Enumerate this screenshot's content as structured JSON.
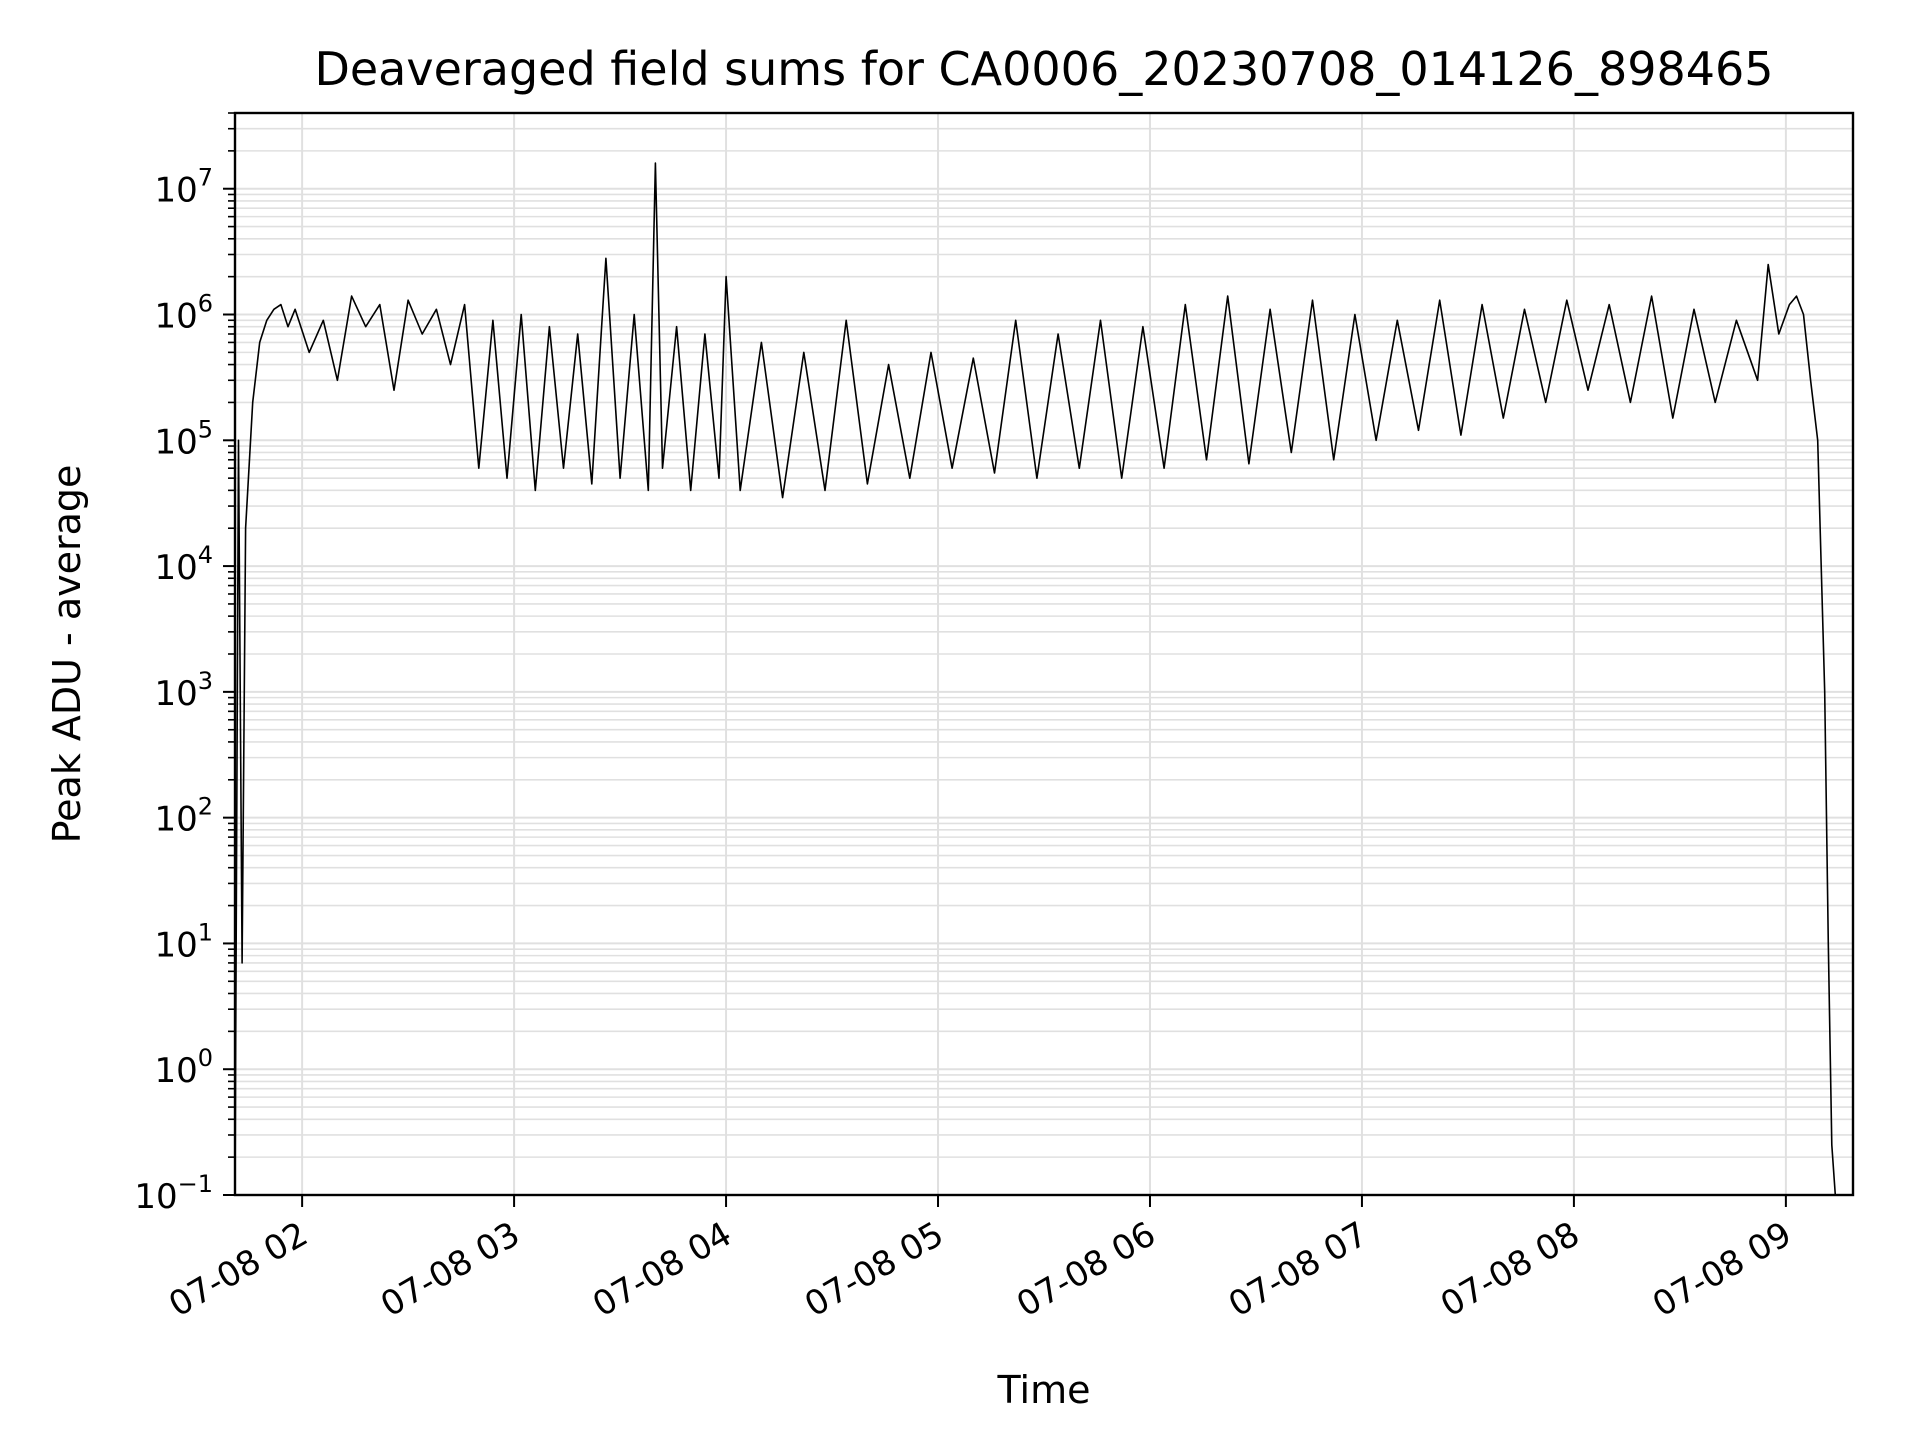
{
  "chart_data": {
    "type": "line",
    "title": "Deaveraged field sums for CA0006_20230708_014126_898465",
    "xlabel": "Time",
    "ylabel": "Peak ADU - average",
    "x_ticks": [
      "07-08 02",
      "07-08 03",
      "07-08 04",
      "07-08 05",
      "07-08 06",
      "07-08 07",
      "07-08 08",
      "07-08 09"
    ],
    "x_range": [
      "2023-07-08 01:41",
      "2023-07-08 09:19"
    ],
    "y_scale": "log",
    "ylim": [
      0.1,
      40000000
    ],
    "y_ticks": [
      {
        "base": "10",
        "exp": "7"
      },
      {
        "base": "10",
        "exp": "6"
      },
      {
        "base": "10",
        "exp": "5"
      },
      {
        "base": "10",
        "exp": "4"
      },
      {
        "base": "10",
        "exp": "3"
      },
      {
        "base": "10",
        "exp": "2"
      },
      {
        "base": "10",
        "exp": "1"
      },
      {
        "base": "10",
        "exp": "0"
      },
      {
        "base": "10",
        "exp": "−1"
      }
    ],
    "grid": true,
    "line_color": "#000000",
    "grid_color": "#e0e0e0",
    "series": [
      {
        "x": [
          "2023-07-08 01:41",
          "2023-07-08 01:42",
          "2023-07-08 01:43",
          "2023-07-08 01:44",
          "2023-07-08 01:46",
          "2023-07-08 01:48",
          "2023-07-08 01:50",
          "2023-07-08 01:52",
          "2023-07-08 01:54",
          "2023-07-08 01:56",
          "2023-07-08 01:58",
          "2023-07-08 02:02",
          "2023-07-08 02:06",
          "2023-07-08 02:10",
          "2023-07-08 02:14",
          "2023-07-08 02:18",
          "2023-07-08 02:22",
          "2023-07-08 02:26",
          "2023-07-08 02:30",
          "2023-07-08 02:34",
          "2023-07-08 02:38",
          "2023-07-08 02:42",
          "2023-07-08 02:46",
          "2023-07-08 02:50",
          "2023-07-08 02:54",
          "2023-07-08 02:58",
          "2023-07-08 03:02",
          "2023-07-08 03:06",
          "2023-07-08 03:10",
          "2023-07-08 03:14",
          "2023-07-08 03:18",
          "2023-07-08 03:22",
          "2023-07-08 03:26",
          "2023-07-08 03:30",
          "2023-07-08 03:34",
          "2023-07-08 03:38",
          "2023-07-08 03:40",
          "2023-07-08 03:42",
          "2023-07-08 03:46",
          "2023-07-08 03:50",
          "2023-07-08 03:54",
          "2023-07-08 03:58",
          "2023-07-08 04:00",
          "2023-07-08 04:04",
          "2023-07-08 04:10",
          "2023-07-08 04:16",
          "2023-07-08 04:22",
          "2023-07-08 04:28",
          "2023-07-08 04:34",
          "2023-07-08 04:40",
          "2023-07-08 04:46",
          "2023-07-08 04:52",
          "2023-07-08 04:58",
          "2023-07-08 05:04",
          "2023-07-08 05:10",
          "2023-07-08 05:16",
          "2023-07-08 05:22",
          "2023-07-08 05:28",
          "2023-07-08 05:34",
          "2023-07-08 05:40",
          "2023-07-08 05:46",
          "2023-07-08 05:52",
          "2023-07-08 05:58",
          "2023-07-08 06:04",
          "2023-07-08 06:10",
          "2023-07-08 06:16",
          "2023-07-08 06:22",
          "2023-07-08 06:28",
          "2023-07-08 06:34",
          "2023-07-08 06:40",
          "2023-07-08 06:46",
          "2023-07-08 06:52",
          "2023-07-08 06:58",
          "2023-07-08 07:04",
          "2023-07-08 07:10",
          "2023-07-08 07:16",
          "2023-07-08 07:22",
          "2023-07-08 07:28",
          "2023-07-08 07:34",
          "2023-07-08 07:40",
          "2023-07-08 07:46",
          "2023-07-08 07:52",
          "2023-07-08 07:58",
          "2023-07-08 08:04",
          "2023-07-08 08:10",
          "2023-07-08 08:16",
          "2023-07-08 08:22",
          "2023-07-08 08:28",
          "2023-07-08 08:34",
          "2023-07-08 08:40",
          "2023-07-08 08:46",
          "2023-07-08 08:52",
          "2023-07-08 08:55",
          "2023-07-08 08:58",
          "2023-07-08 09:01",
          "2023-07-08 09:03",
          "2023-07-08 09:05",
          "2023-07-08 09:07",
          "2023-07-08 09:09",
          "2023-07-08 09:10",
          "2023-07-08 09:11",
          "2023-07-08 09:12",
          "2023-07-08 09:13",
          "2023-07-08 09:14"
        ],
        "y": [
          0.1,
          100000,
          7,
          20000,
          200000,
          600000,
          900000,
          1100000,
          1200000,
          800000,
          1100000,
          500000,
          900000,
          300000,
          1400000,
          800000,
          1200000,
          250000,
          1300000,
          700000,
          1100000,
          400000,
          1200000,
          60000,
          900000,
          50000,
          1000000,
          40000,
          800000,
          60000,
          700000,
          45000,
          2800000,
          50000,
          1000000,
          40000,
          16000000,
          60000,
          800000,
          40000,
          700000,
          50000,
          2000000,
          40000,
          600000,
          35000,
          500000,
          40000,
          900000,
          45000,
          400000,
          50000,
          500000,
          60000,
          450000,
          55000,
          900000,
          50000,
          700000,
          60000,
          900000,
          50000,
          800000,
          60000,
          1200000,
          70000,
          1400000,
          65000,
          1100000,
          80000,
          1300000,
          70000,
          1000000,
          100000,
          900000,
          120000,
          1300000,
          110000,
          1200000,
          150000,
          1100000,
          200000,
          1300000,
          250000,
          1200000,
          200000,
          1400000,
          150000,
          1100000,
          200000,
          900000,
          300000,
          2500000,
          700000,
          1200000,
          1400000,
          1000000,
          300000,
          100000,
          10000,
          1000,
          10,
          0.25,
          0.1
        ]
      }
    ]
  }
}
